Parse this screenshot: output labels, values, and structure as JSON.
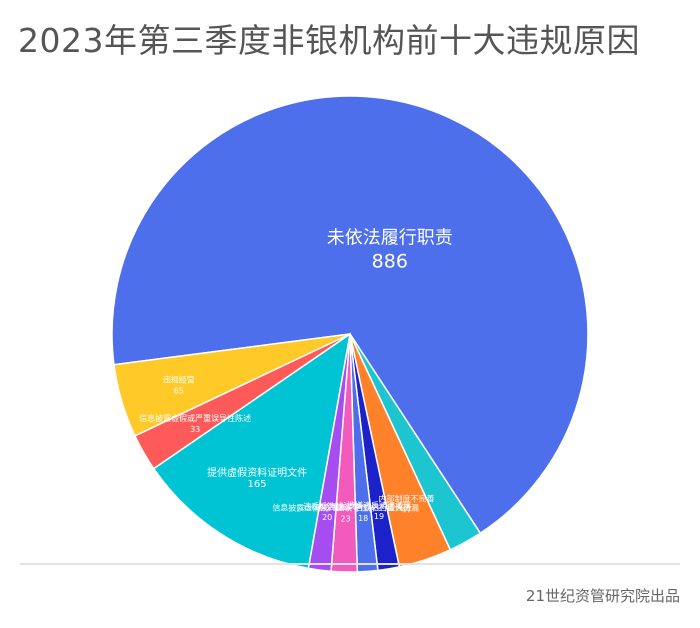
{
  "title": "2023年第三季度非银机构前十大违规原因",
  "source": "21世纪资管研究院出品",
  "colors": {
    "edge": "#ffffff",
    "title": "#555555"
  },
  "chart_data": {
    "type": "pie",
    "title": "2023年第三季度非银机构前十大违规原因",
    "slices": [
      {
        "label": "未依法履行职责",
        "value": 886,
        "color": "#4E6FEC"
      },
      {
        "label": "",
        "value": 30,
        "color": "#1CC5D0"
      },
      {
        "label": "内部制度不完善",
        "value": 47,
        "color": "#FF8129"
      },
      {
        "label": "涉嫌违反法律法规",
        "value": 19,
        "color": "#1B22C9"
      },
      {
        "label": "违规发布广告或进行虚假、",
        "value": 18,
        "color": "#4E6FEC"
      },
      {
        "label": "信息披露虚假或严重误导性陈述,重大遗漏",
        "value": 23,
        "color": "#F25BBD"
      },
      {
        "label": "违反反洗钱法",
        "value": 20,
        "color": "#A54DF0"
      },
      {
        "label": "提供虚假资料证明文件",
        "value": 165,
        "color": "#00C4D4"
      },
      {
        "label": "信息披露虚假或严重误导性陈述",
        "value": 33,
        "color": "#FF5A5A"
      },
      {
        "label": "违规经营",
        "value": 65,
        "color": "#FFCA28"
      }
    ]
  }
}
